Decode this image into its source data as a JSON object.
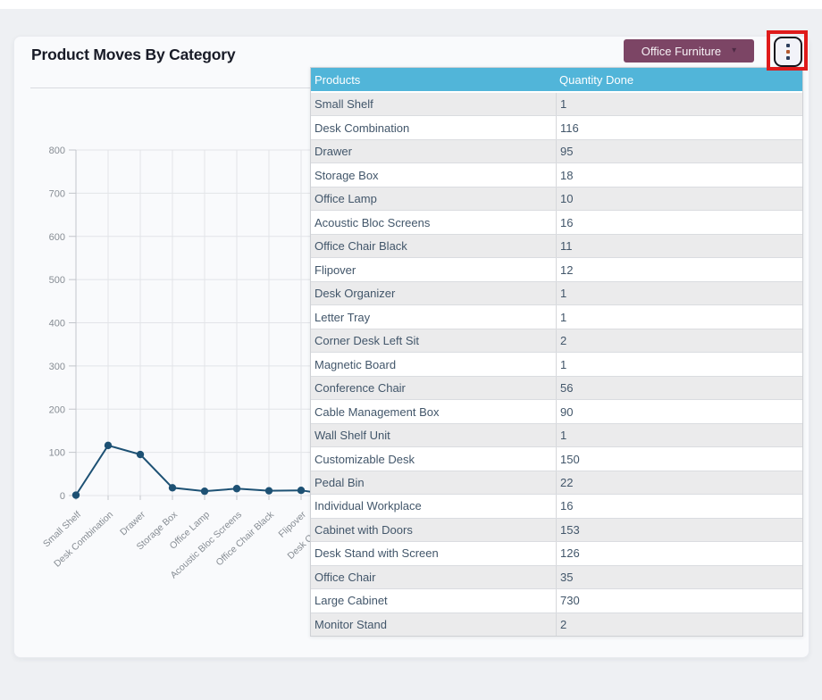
{
  "card": {
    "title": "Product Moves By Category"
  },
  "toolbar": {
    "category_button_label": "Office Furniture",
    "category_button_caret": "▾",
    "kebab_icon_name": "kebab-menu-icon"
  },
  "table": {
    "headers": [
      "Products",
      "Quantity Done"
    ],
    "rows": [
      [
        "Small Shelf",
        "1"
      ],
      [
        "Desk Combination",
        "116"
      ],
      [
        "Drawer",
        "95"
      ],
      [
        "Storage Box",
        "18"
      ],
      [
        "Office Lamp",
        "10"
      ],
      [
        "Acoustic Bloc Screens",
        "16"
      ],
      [
        "Office Chair Black",
        "11"
      ],
      [
        "Flipover",
        "12"
      ],
      [
        "Desk Organizer",
        "1"
      ],
      [
        "Letter Tray",
        "1"
      ],
      [
        "Corner Desk Left Sit",
        "2"
      ],
      [
        "Magnetic Board",
        "1"
      ],
      [
        "Conference Chair",
        "56"
      ],
      [
        "Cable Management Box",
        "90"
      ],
      [
        "Wall Shelf Unit",
        "1"
      ],
      [
        "Customizable Desk",
        "150"
      ],
      [
        "Pedal Bin",
        "22"
      ],
      [
        "Individual Workplace",
        "16"
      ],
      [
        "Cabinet with Doors",
        "153"
      ],
      [
        "Desk Stand with Screen",
        "126"
      ],
      [
        "Office Chair",
        "35"
      ],
      [
        "Large Cabinet",
        "730"
      ],
      [
        "Monitor Stand",
        "2"
      ]
    ]
  },
  "chart_data": {
    "type": "line",
    "title": "Product Moves By Category",
    "categories": [
      "Small Shelf",
      "Desk Combination",
      "Drawer",
      "Storage Box",
      "Office Lamp",
      "Acoustic Bloc Screens",
      "Office Chair Black",
      "Flipover",
      "Desk Organizer",
      "Letter Tray",
      "Corner Desk Left Sit",
      "Magnetic Board",
      "Conference Chair",
      "Cable Management Box",
      "Wall Shelf Unit",
      "Customizable Desk",
      "Pedal Bin",
      "Individual Workplace",
      "Cabinet with Doors",
      "Desk Stand with Screen",
      "Office Chair",
      "Large Cabinet",
      "Monitor Stand"
    ],
    "series": [
      {
        "name": "Quantity Done",
        "values": [
          1,
          116,
          95,
          18,
          10,
          16,
          11,
          12,
          1,
          1,
          2,
          1,
          56,
          90,
          1,
          150,
          22,
          16,
          153,
          126,
          35,
          730,
          2
        ]
      }
    ],
    "xlabel": "",
    "ylabel": "",
    "ylim": [
      0,
      800
    ],
    "ytick_step": 100,
    "grid": true,
    "legend_position": "none",
    "note": "categories from Desk Organizer onward are hidden behind the data-table overlay"
  },
  "colors": {
    "accent_line": "#1d5174",
    "table_header_bg": "#51b5d9",
    "filter_button_bg": "#7c4565",
    "highlight_red": "#df1b1b",
    "row_alt_bg": "#ebebec",
    "grid_line": "#e2e4e8",
    "axis_tick": "#c2c5cb",
    "axis_label": "#878d94"
  }
}
